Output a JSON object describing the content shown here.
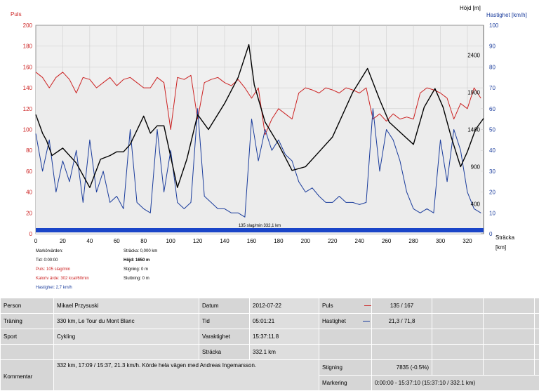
{
  "chart_data": {
    "type": "line",
    "xlabel": "Sträcka",
    "xunit": "[km]",
    "xlim": [
      0,
      332
    ],
    "x_ticks": [
      0,
      20,
      40,
      60,
      80,
      100,
      120,
      140,
      160,
      180,
      200,
      220,
      240,
      260,
      280,
      300,
      320
    ],
    "axes": {
      "puls": {
        "label": "Puls",
        "ylim": [
          0,
          200
        ],
        "ticks": [
          0,
          20,
          40,
          60,
          80,
          100,
          120,
          140,
          160,
          180,
          200
        ],
        "color": "#cc2222"
      },
      "hastighet": {
        "label": "Hastighet [km/h]",
        "ylim": [
          0,
          100
        ],
        "ticks": [
          0,
          10,
          20,
          30,
          40,
          50,
          60,
          70,
          80,
          90,
          100
        ],
        "color": "#1a3c9c"
      },
      "hojd": {
        "label": "Höjd [m]",
        "ylim": [
          0,
          2800
        ],
        "ticks": [
          400,
          900,
          1400,
          1900,
          2400
        ],
        "color": "#000000"
      }
    },
    "series": [
      {
        "name": "Puls",
        "axis": "puls",
        "color": "#cc2222",
        "x": [
          0,
          5,
          10,
          15,
          20,
          25,
          30,
          35,
          40,
          45,
          50,
          55,
          60,
          65,
          70,
          75,
          80,
          85,
          90,
          95,
          100,
          105,
          110,
          115,
          120,
          125,
          130,
          135,
          140,
          145,
          150,
          155,
          160,
          165,
          170,
          175,
          180,
          185,
          190,
          195,
          200,
          205,
          210,
          215,
          220,
          225,
          230,
          235,
          240,
          245,
          250,
          255,
          260,
          265,
          270,
          275,
          280,
          285,
          290,
          295,
          300,
          305,
          310,
          315,
          320,
          325,
          330
        ],
        "values": [
          155,
          150,
          140,
          150,
          155,
          148,
          135,
          150,
          148,
          140,
          145,
          150,
          142,
          148,
          150,
          145,
          140,
          140,
          150,
          145,
          100,
          150,
          148,
          152,
          110,
          145,
          148,
          150,
          145,
          142,
          148,
          140,
          130,
          140,
          95,
          110,
          120,
          115,
          110,
          135,
          140,
          138,
          135,
          140,
          138,
          135,
          140,
          138,
          135,
          140,
          110,
          115,
          108,
          115,
          110,
          112,
          110,
          135,
          140,
          138,
          135,
          130,
          110,
          125,
          120,
          140,
          130
        ]
      },
      {
        "name": "Hastighet",
        "axis": "hastighet",
        "color": "#1a3c9c",
        "x": [
          0,
          5,
          10,
          15,
          20,
          25,
          30,
          35,
          40,
          45,
          50,
          55,
          60,
          65,
          70,
          75,
          80,
          85,
          90,
          95,
          100,
          105,
          110,
          115,
          120,
          125,
          130,
          135,
          140,
          145,
          150,
          155,
          160,
          165,
          170,
          175,
          180,
          185,
          190,
          195,
          200,
          205,
          210,
          215,
          220,
          225,
          230,
          235,
          240,
          245,
          250,
          255,
          260,
          265,
          270,
          275,
          280,
          285,
          290,
          295,
          300,
          305,
          310,
          315,
          320,
          325,
          330
        ],
        "values": [
          48,
          30,
          45,
          20,
          35,
          25,
          40,
          15,
          45,
          20,
          30,
          15,
          18,
          12,
          50,
          15,
          12,
          10,
          50,
          20,
          40,
          15,
          12,
          15,
          60,
          18,
          15,
          12,
          12,
          10,
          10,
          8,
          55,
          35,
          50,
          40,
          45,
          38,
          35,
          25,
          20,
          22,
          18,
          15,
          15,
          18,
          15,
          15,
          14,
          15,
          60,
          30,
          50,
          45,
          35,
          20,
          12,
          10,
          12,
          10,
          45,
          25,
          50,
          40,
          20,
          12,
          10
        ]
      },
      {
        "name": "Höjd",
        "axis": "hojd",
        "color": "#000000",
        "x": [
          0,
          5,
          8,
          12,
          20,
          30,
          40,
          48,
          55,
          60,
          65,
          70,
          80,
          85,
          90,
          95,
          105,
          112,
          120,
          128,
          140,
          150,
          158,
          162,
          170,
          180,
          190,
          200,
          210,
          220,
          235,
          246,
          255,
          262,
          268,
          274,
          280,
          288,
          296,
          302,
          308,
          315,
          320,
          326,
          332
        ],
        "values": [
          1600,
          1350,
          1250,
          1050,
          1150,
          950,
          620,
          1000,
          1050,
          1100,
          1100,
          1200,
          1580,
          1350,
          1450,
          1450,
          620,
          1000,
          1600,
          1400,
          1750,
          2100,
          2540,
          2000,
          1500,
          1200,
          850,
          900,
          1100,
          1300,
          1900,
          2220,
          1800,
          1500,
          1400,
          1300,
          1200,
          1700,
          1950,
          1700,
          1300,
          900,
          1100,
          1400,
          1550
        ]
      }
    ],
    "scale_bar_label": "135 slag/min 332,1 km"
  },
  "marker_info": {
    "title": "Markörvärden:",
    "tid": "Tid: 0:00:00",
    "puls": "Puls: 105 slag/min",
    "kalori": "Kaloriv ärde: 302 kcal/60min",
    "hastighet": "Hastighet: 2,7 km/h",
    "stracka": "Sträcka: 0,000 km",
    "hojd": "Höjd: 1650 m",
    "stigning": "Stigning: 0 m",
    "sluttning": "Sluttning: 0 m"
  },
  "summary": {
    "person_label": "Person",
    "person": "Mikael Przysuski",
    "traning_label": "Träning",
    "traning": "330 km, Le Tour du Mont Blanc",
    "sport_label": "Sport",
    "sport": "Cykling",
    "kommentar_label": "Kommentar",
    "kommentar": "332 km, 17:09 / 15:37, 21.3 km/h. Körde hela vägen med Andreas Ingemarsson.",
    "datum_label": "Datum",
    "datum": "2012-07-22",
    "tid_label": "Tid",
    "tid": "05:01:21",
    "varaktighet_label": "Varaktighet",
    "varaktighet": "15:37:11.8",
    "stracka_label": "Sträcka",
    "stracka": "332.1 km",
    "puls_label": "Puls",
    "puls": "135 / 167",
    "hastighet_label": "Hastighet",
    "hastighet": "21,3 / 71,8",
    "stigning_label": "Stigning",
    "stigning": "7835 (-0.5%)",
    "markering_label": "Markering",
    "markering": "0:00:00 - 15:37:10 (15:37:10 / 332.1 km)"
  },
  "colors": {
    "puls": "#cc2222",
    "hastighet": "#1a3c9c",
    "hojd": "#000000",
    "plot_bg": "#f0f0f0",
    "grid": "#c8c8c8"
  }
}
